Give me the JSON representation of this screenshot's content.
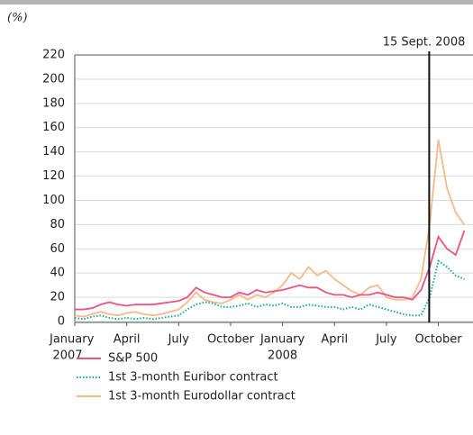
{
  "chart_data": {
    "type": "line",
    "y_unit": "(%)",
    "x": [
      0,
      0.5,
      1,
      1.5,
      2,
      2.5,
      3,
      3.5,
      4,
      4.5,
      5,
      5.5,
      6,
      6.5,
      7,
      7.5,
      8,
      8.5,
      9,
      9.5,
      10,
      10.5,
      11,
      11.5,
      12,
      12.5,
      13,
      13.5,
      14,
      14.5,
      15,
      15.5,
      16,
      16.5,
      17,
      17.5,
      18,
      18.5,
      19,
      19.5,
      20,
      20.5,
      21,
      21.5,
      22,
      22.5
    ],
    "xlim": [
      0,
      23
    ],
    "xticks": [
      {
        "value": 0,
        "label": "January"
      },
      {
        "value": 3,
        "label": "April"
      },
      {
        "value": 6,
        "label": "July"
      },
      {
        "value": 9,
        "label": "October"
      },
      {
        "value": 12,
        "label": "January"
      },
      {
        "value": 15,
        "label": "April"
      },
      {
        "value": 18,
        "label": "July"
      },
      {
        "value": 21,
        "label": "October"
      }
    ],
    "year_labels": [
      {
        "value": 0,
        "label": "2007"
      },
      {
        "value": 12,
        "label": "2008"
      }
    ],
    "ylim": [
      0,
      220
    ],
    "yticks": [
      0,
      20,
      40,
      60,
      80,
      100,
      120,
      140,
      160,
      180,
      200,
      220
    ],
    "grid": true,
    "event_line": {
      "x": 20.47,
      "label": "15 Sept. 2008"
    },
    "series": [
      {
        "name": "S&P 500",
        "color": "#e8557f",
        "dash": "solid",
        "values": [
          10,
          10,
          11,
          14,
          16,
          14,
          13,
          14,
          14,
          14,
          15,
          16,
          17,
          20,
          28,
          24,
          22,
          20,
          20,
          24,
          22,
          26,
          24,
          25,
          26,
          28,
          30,
          28,
          28,
          24,
          22,
          22,
          20,
          22,
          22,
          24,
          22,
          20,
          20,
          18,
          26,
          45,
          70,
          60,
          55,
          75
        ]
      },
      {
        "name": "1st 3-month Euribor contract",
        "color": "#19a89a",
        "dash": "dotted",
        "values": [
          3,
          2,
          4,
          5,
          3,
          2,
          3,
          2,
          3,
          2,
          3,
          4,
          5,
          10,
          14,
          16,
          15,
          12,
          12,
          13,
          15,
          12,
          14,
          13,
          15,
          12,
          12,
          14,
          13,
          12,
          12,
          10,
          12,
          10,
          14,
          12,
          10,
          8,
          6,
          5,
          5,
          20,
          50,
          45,
          38,
          35
        ]
      },
      {
        "name": "1st 3-month Eurodollar contract",
        "color": "#f7b98a",
        "dash": "solid",
        "values": [
          5,
          4,
          6,
          8,
          6,
          5,
          7,
          8,
          6,
          5,
          6,
          8,
          10,
          16,
          24,
          18,
          16,
          15,
          18,
          22,
          18,
          22,
          20,
          24,
          30,
          40,
          35,
          45,
          38,
          42,
          35,
          30,
          25,
          22,
          28,
          30,
          20,
          18,
          18,
          20,
          35,
          80,
          150,
          110,
          90,
          80
        ]
      }
    ]
  }
}
